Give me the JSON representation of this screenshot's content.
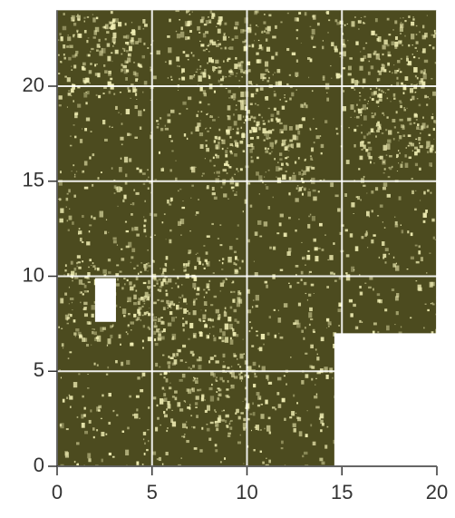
{
  "chart_data": {
    "type": "heatmap",
    "xlim": [
      0,
      20
    ],
    "ylim": [
      0,
      24
    ],
    "xticks": [
      0,
      5,
      10,
      15,
      20
    ],
    "yticks": [
      0,
      5,
      10,
      15,
      20
    ],
    "grid": true,
    "colors": [
      "#4c4b1f",
      "#f2f0b6"
    ]
  }
}
